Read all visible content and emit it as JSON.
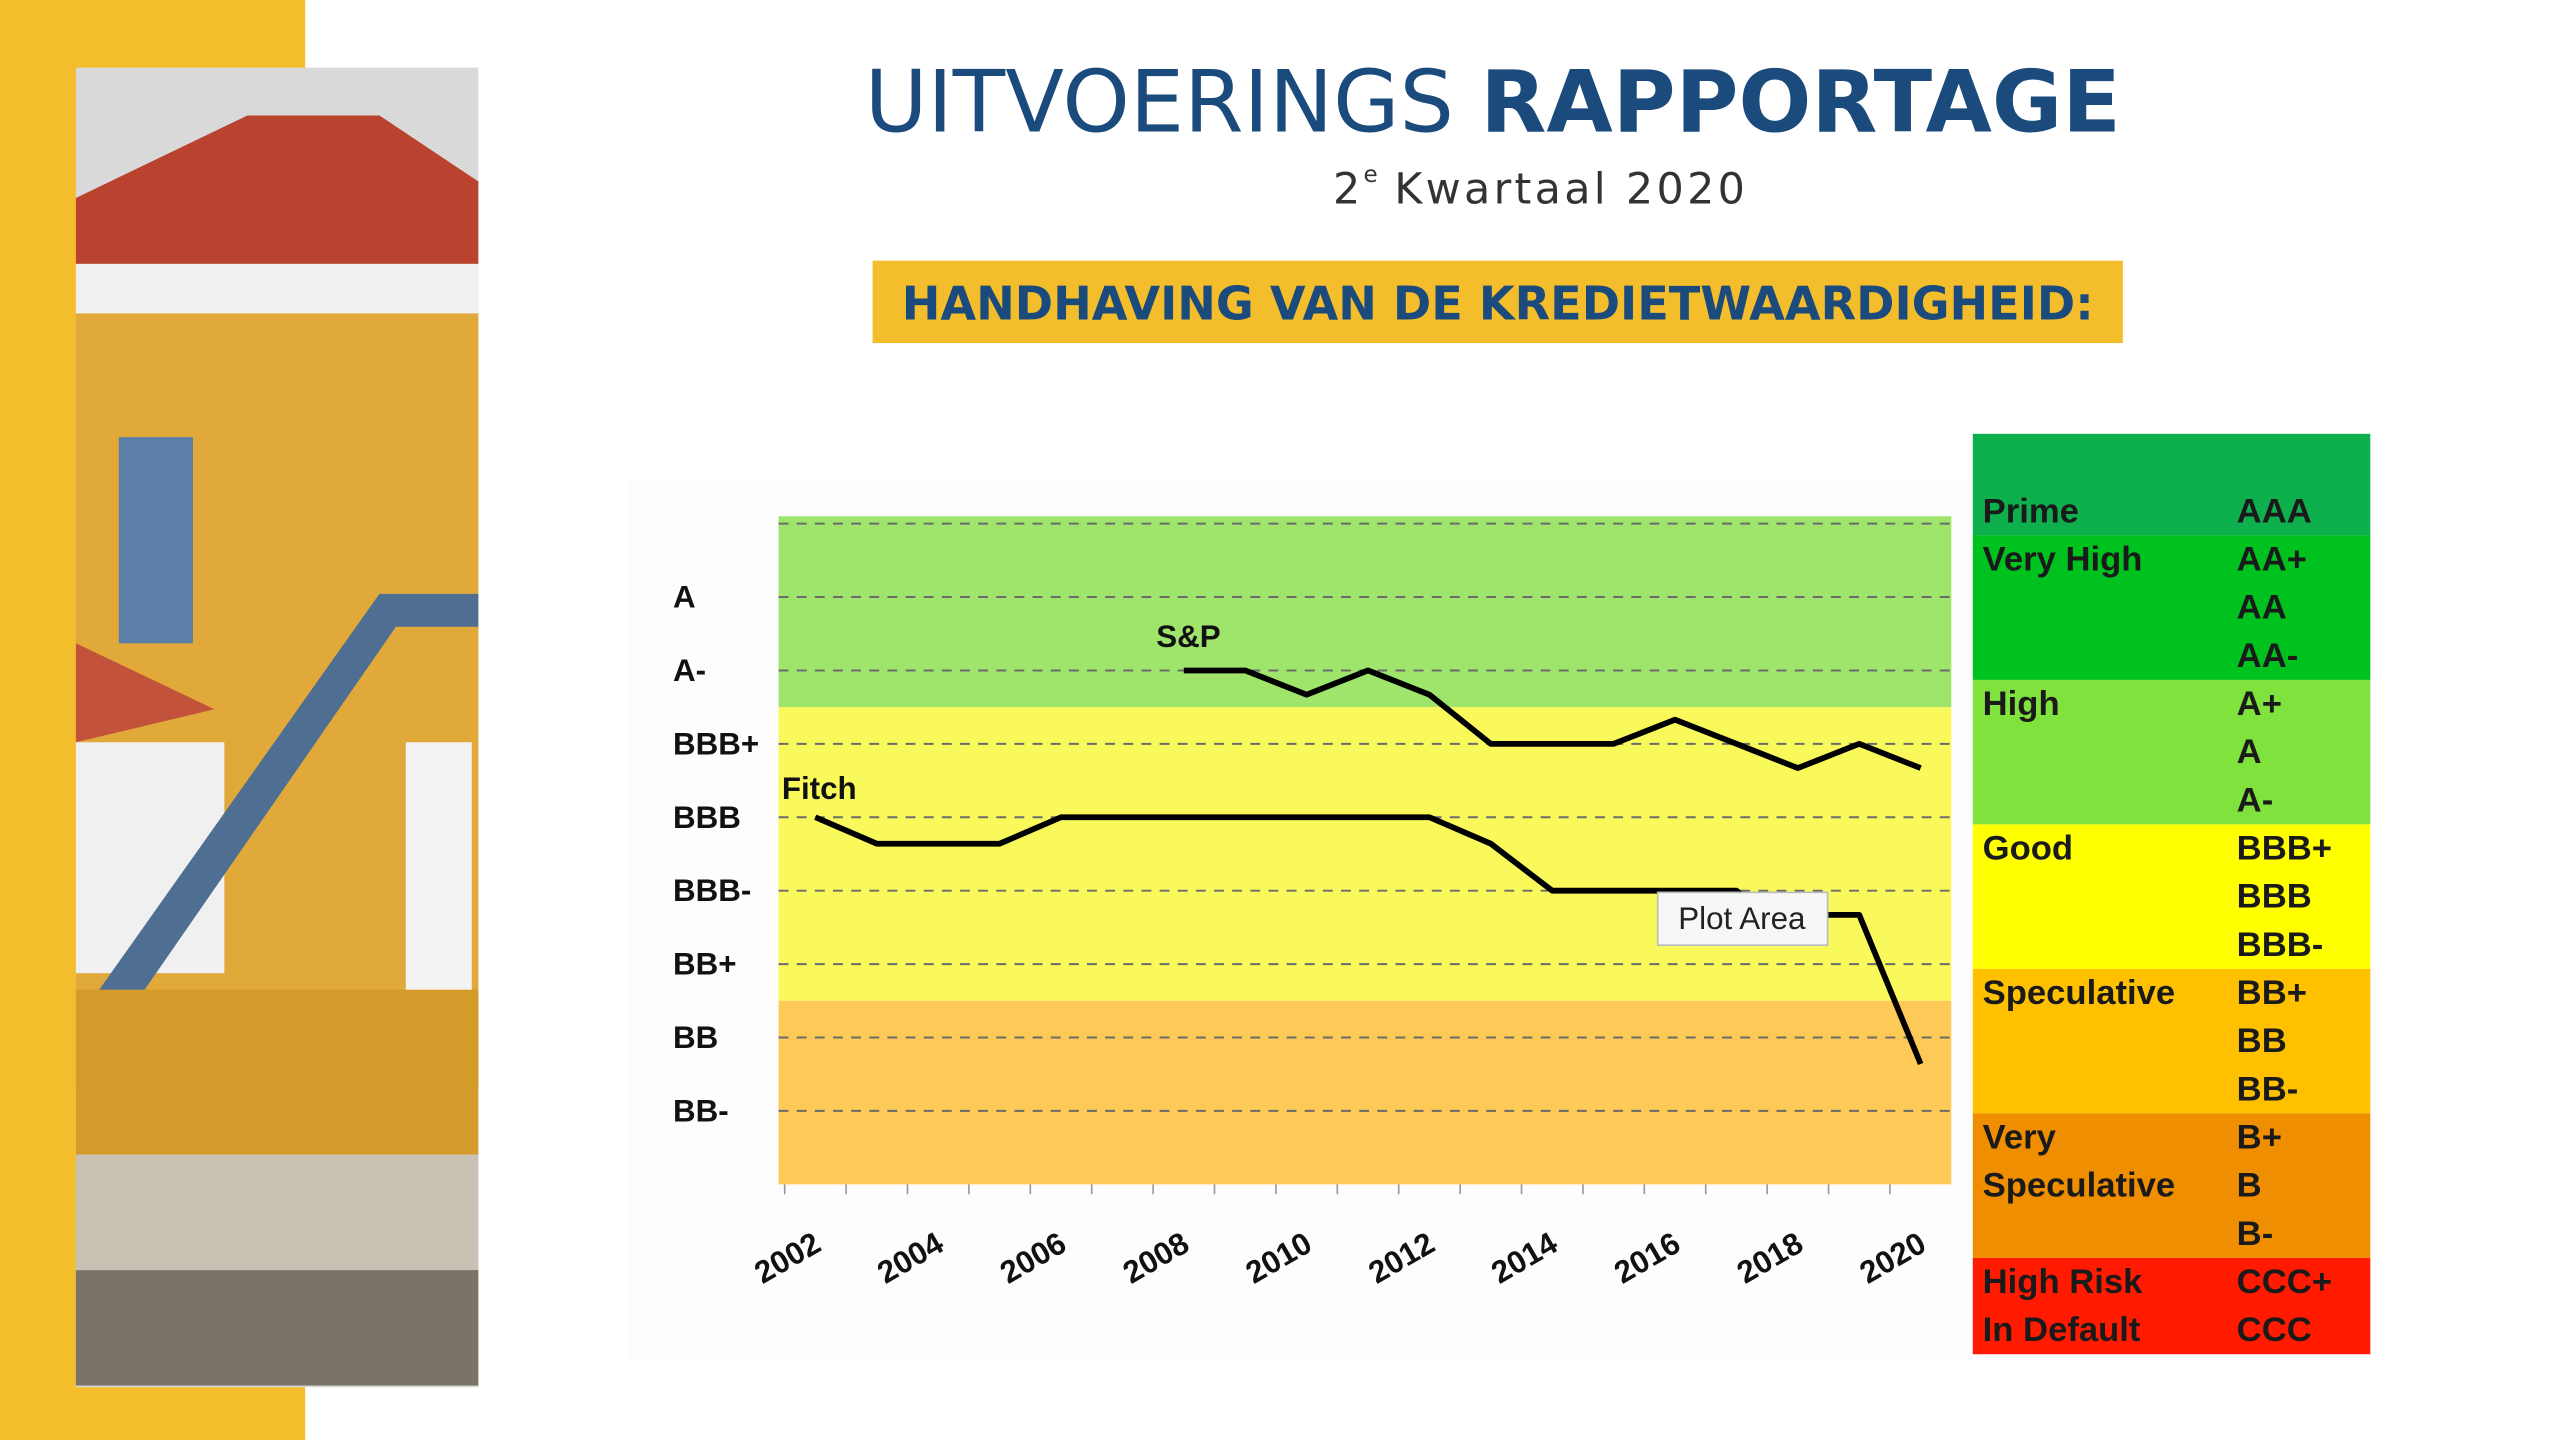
{
  "header": {
    "title_light": "UITVOERINGS",
    "title_bold": "RAPPORTAGE",
    "subtitle_number": "2",
    "subtitle_superscript": "e",
    "subtitle_text": "Kwartaal 2020",
    "banner": "HANDHAVING VAN DE KREDIETWAARDIGHEID:"
  },
  "chart_data": {
    "type": "line",
    "xlim": [
      2001.9,
      2021
    ],
    "xticks": [
      2002,
      2004,
      2006,
      2008,
      2010,
      2012,
      2014,
      2016,
      2018,
      2020
    ],
    "x_minor_ticks": [
      2003,
      2005,
      2007,
      2009,
      2011,
      2013,
      2015,
      2017,
      2019
    ],
    "ylim": [
      0,
      9.1
    ],
    "yticks": [
      {
        "value": 1,
        "label": "BB-"
      },
      {
        "value": 2,
        "label": "BB"
      },
      {
        "value": 3,
        "label": "BB+"
      },
      {
        "value": 4,
        "label": "BBB-"
      },
      {
        "value": 5,
        "label": "BBB"
      },
      {
        "value": 6,
        "label": "BBB+"
      },
      {
        "value": 7,
        "label": "A-"
      },
      {
        "value": 8,
        "label": "A"
      },
      {
        "value": 9,
        "label": null
      }
    ],
    "grid": true,
    "bands": [
      {
        "from": 6.5,
        "to": 9.1,
        "color": "#9fe56b"
      },
      {
        "from": 2.5,
        "to": 6.5,
        "color": "#f9f95c"
      },
      {
        "from": 0,
        "to": 2.5,
        "color": "#fdca58"
      }
    ],
    "series": [
      {
        "name": "Fitch",
        "color": "#000000",
        "x": [
          2002.5,
          2003.5,
          2005.5,
          2006.5,
          2012.5,
          2013.5,
          2014.5,
          2017.5,
          2018,
          2019.5,
          2020.5
        ],
        "values": [
          5,
          4.64,
          4.64,
          5,
          5,
          4.64,
          4,
          4,
          3.67,
          3.67,
          1.64
        ]
      },
      {
        "name": "S&P",
        "color": "#000000",
        "x": [
          2008.5,
          2009.5,
          2010.5,
          2011.5,
          2012.5,
          2013.5,
          2015.5,
          2016.5,
          2017.5,
          2018.5,
          2019.5,
          2020.5
        ],
        "values": [
          7,
          7,
          6.67,
          7,
          6.67,
          6,
          6,
          6.33,
          6,
          5.67,
          6,
          5.67
        ]
      }
    ],
    "tooltip": "Plot Area"
  },
  "rating_table": {
    "groups": [
      {
        "labels": [
          "Prime"
        ],
        "ratings": [
          "AAA"
        ],
        "color": "#0db04c"
      },
      {
        "labels": [
          "Very High"
        ],
        "ratings": [
          "AA+",
          "AA",
          "AA-"
        ],
        "color": "#00c21e"
      },
      {
        "labels": [
          "High"
        ],
        "ratings": [
          "A+",
          "A",
          "A-"
        ],
        "color": "#80e23c"
      },
      {
        "labels": [
          "Good"
        ],
        "ratings": [
          "BBB+",
          "BBB",
          "BBB-"
        ],
        "color": "#ffff00"
      },
      {
        "labels": [
          "Speculative"
        ],
        "ratings": [
          "BB+",
          "BB",
          "BB-"
        ],
        "color": "#ffc000"
      },
      {
        "labels": [
          "Very",
          "Speculative"
        ],
        "ratings": [
          "B+",
          "B",
          "B-"
        ],
        "color": "#ef8e00"
      },
      {
        "labels": [
          "High Risk",
          "In Default"
        ],
        "ratings": [
          "CCC+",
          "CCC"
        ],
        "color": "#ff1a00"
      }
    ]
  }
}
